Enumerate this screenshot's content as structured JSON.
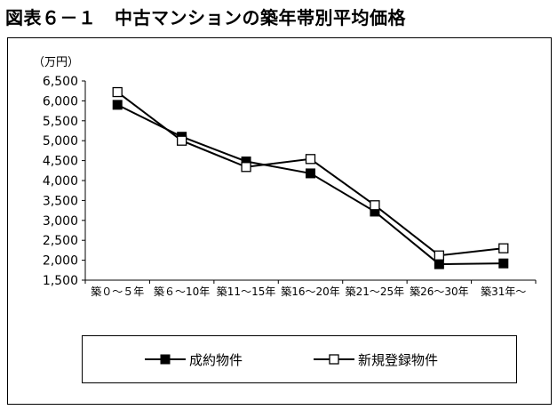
{
  "figure": {
    "title": "図表６－１　中古マンションの築年帯別平均価格",
    "unit_label": "（万円）"
  },
  "chart_data": {
    "type": "line",
    "categories": [
      "築０～５年",
      "築６～10年",
      "築11～15年",
      "築16～20年",
      "築21～25年",
      "築26～30年",
      "築31年～"
    ],
    "series": [
      {
        "name": "成約物件",
        "marker": "filled-square",
        "color": "#000000",
        "values": [
          5900,
          5100,
          4480,
          4180,
          3220,
          1900,
          1920
        ]
      },
      {
        "name": "新規登録物件",
        "marker": "open-square",
        "color": "#000000",
        "values": [
          6220,
          5000,
          4340,
          4540,
          3380,
          2120,
          2300
        ]
      }
    ],
    "yticks": [
      "1,500",
      "2,000",
      "2,500",
      "3,000",
      "3,500",
      "4,000",
      "4,500",
      "5,000",
      "5,500",
      "6,000",
      "6,500"
    ],
    "ylim": [
      1500,
      6500
    ],
    "grid": false,
    "legend_position": "bottom"
  }
}
